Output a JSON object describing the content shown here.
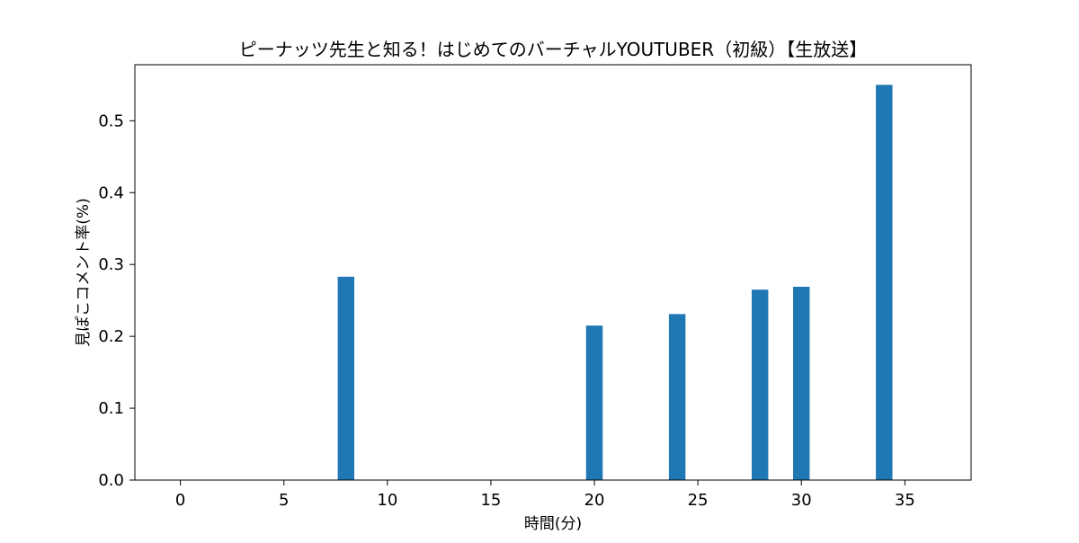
{
  "chart_data": {
    "type": "bar",
    "title": "ピーナッツ先生と知る！はじめてのバーチャルYOUTUBER（初級）【生放送】",
    "xlabel": "時間(分)",
    "ylabel": "見ぽこコメント率(%)",
    "x": [
      8,
      20,
      24,
      28,
      30,
      34
    ],
    "values": [
      0.283,
      0.215,
      0.231,
      0.265,
      0.269,
      0.55
    ],
    "bar_width": 0.8,
    "xlim": [
      -2.2,
      38.2
    ],
    "ylim": [
      0,
      0.578
    ],
    "xticks": [
      0,
      5,
      10,
      15,
      20,
      25,
      30,
      35
    ],
    "xtick_labels": [
      "0",
      "5",
      "10",
      "15",
      "20",
      "25",
      "30",
      "35"
    ],
    "yticks": [
      0.0,
      0.1,
      0.2,
      0.3,
      0.4,
      0.5
    ],
    "ytick_labels": [
      "0.0",
      "0.1",
      "0.2",
      "0.3",
      "0.4",
      "0.5"
    ],
    "bar_color": "#1f77b4",
    "grid": false,
    "legend": "none"
  }
}
